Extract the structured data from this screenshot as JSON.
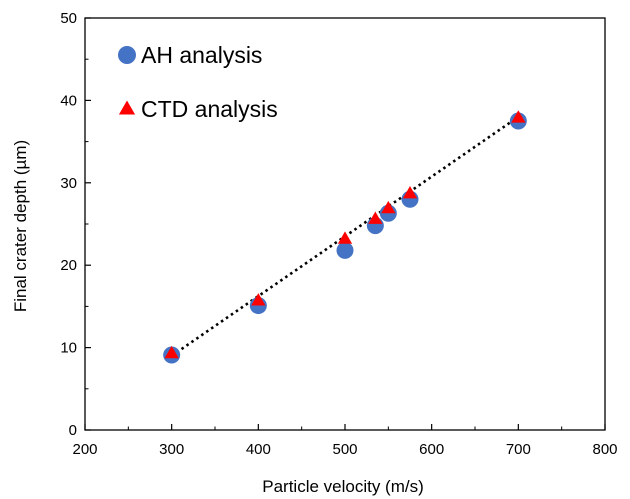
{
  "chart_data": {
    "type": "scatter",
    "title": "",
    "xlabel": "Particle velocity (m/s)",
    "ylabel": "Final crater depth (µm)",
    "xlim": [
      200,
      800
    ],
    "ylim": [
      0,
      50
    ],
    "xticks": [
      200,
      300,
      400,
      500,
      600,
      700,
      800
    ],
    "yticks": [
      0,
      10,
      20,
      30,
      40,
      50
    ],
    "xtick_labels": [
      "200",
      "300",
      "400",
      "500",
      "600",
      "700",
      "800"
    ],
    "ytick_labels": [
      "0",
      "10",
      "20",
      "30",
      "40",
      "50"
    ],
    "grid": false,
    "legend_position": "top-left",
    "series": [
      {
        "name": "AH analysis",
        "marker": "circle",
        "color": "#4472c4",
        "x": [
          300,
          400,
          500,
          535,
          550,
          575,
          700
        ],
        "y": [
          9.1,
          15.1,
          21.8,
          24.8,
          26.3,
          28.0,
          37.5
        ]
      },
      {
        "name": "CTD analysis",
        "marker": "triangle",
        "color": "#ff0000",
        "x": [
          300,
          400,
          500,
          535,
          550,
          575,
          700
        ],
        "y": [
          9.3,
          15.7,
          23.2,
          25.6,
          26.9,
          28.7,
          37.9
        ]
      }
    ],
    "trendline": {
      "style": "dotted",
      "color": "#000000",
      "x": [
        300,
        700
      ],
      "y": [
        9.0,
        38.0
      ]
    }
  }
}
